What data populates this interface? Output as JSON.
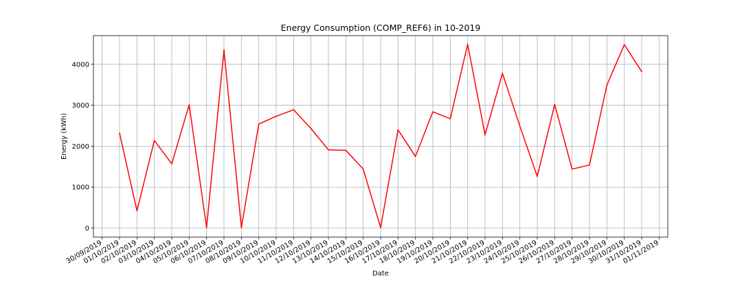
{
  "chart_data": {
    "type": "line",
    "title": "Energy Consumption (COMP_REF6) in 10-2019",
    "xlabel": "Date",
    "ylabel": "Energy (kWh)",
    "grid": true,
    "x_ticks": [
      "30/09/2019",
      "01/10/2019",
      "02/10/2019",
      "03/10/2019",
      "04/10/2019",
      "05/10/2019",
      "06/10/2019",
      "07/10/2019",
      "08/10/2019",
      "09/10/2019",
      "10/10/2019",
      "11/10/2019",
      "12/10/2019",
      "13/10/2019",
      "14/10/2019",
      "15/10/2019",
      "16/10/2019",
      "17/10/2019",
      "18/10/2019",
      "19/10/2019",
      "20/10/2019",
      "21/10/2019",
      "22/10/2019",
      "23/10/2019",
      "24/10/2019",
      "25/10/2019",
      "26/10/2019",
      "27/10/2019",
      "28/10/2019",
      "29/10/2019",
      "30/10/2019",
      "31/10/2019",
      "01/11/2019"
    ],
    "y_ticks": [
      0,
      1000,
      2000,
      3000,
      4000
    ],
    "ylim": [
      -220,
      4700
    ],
    "xlim": [
      "30/09/2019",
      "01/11/2019"
    ],
    "series_color": "#ff0000",
    "x": [
      "01/10/2019",
      "02/10/2019",
      "03/10/2019",
      "04/10/2019",
      "05/10/2019",
      "06/10/2019",
      "07/10/2019",
      "08/10/2019",
      "09/10/2019",
      "10/10/2019",
      "11/10/2019",
      "12/10/2019",
      "13/10/2019",
      "14/10/2019",
      "15/10/2019",
      "16/10/2019",
      "17/10/2019",
      "18/10/2019",
      "19/10/2019",
      "20/10/2019",
      "21/10/2019",
      "22/10/2019",
      "23/10/2019",
      "24/10/2019",
      "25/10/2019",
      "26/10/2019",
      "27/10/2019",
      "28/10/2019",
      "29/10/2019",
      "30/10/2019",
      "31/10/2019"
    ],
    "values": [
      2320,
      420,
      2140,
      1570,
      3010,
      10,
      4350,
      10,
      2540,
      2730,
      2890,
      2430,
      1910,
      1900,
      1440,
      10,
      2400,
      1750,
      2840,
      2670,
      4490,
      2280,
      3780,
      2490,
      1260,
      3020,
      1440,
      1540,
      3490,
      4480,
      3820
    ]
  }
}
